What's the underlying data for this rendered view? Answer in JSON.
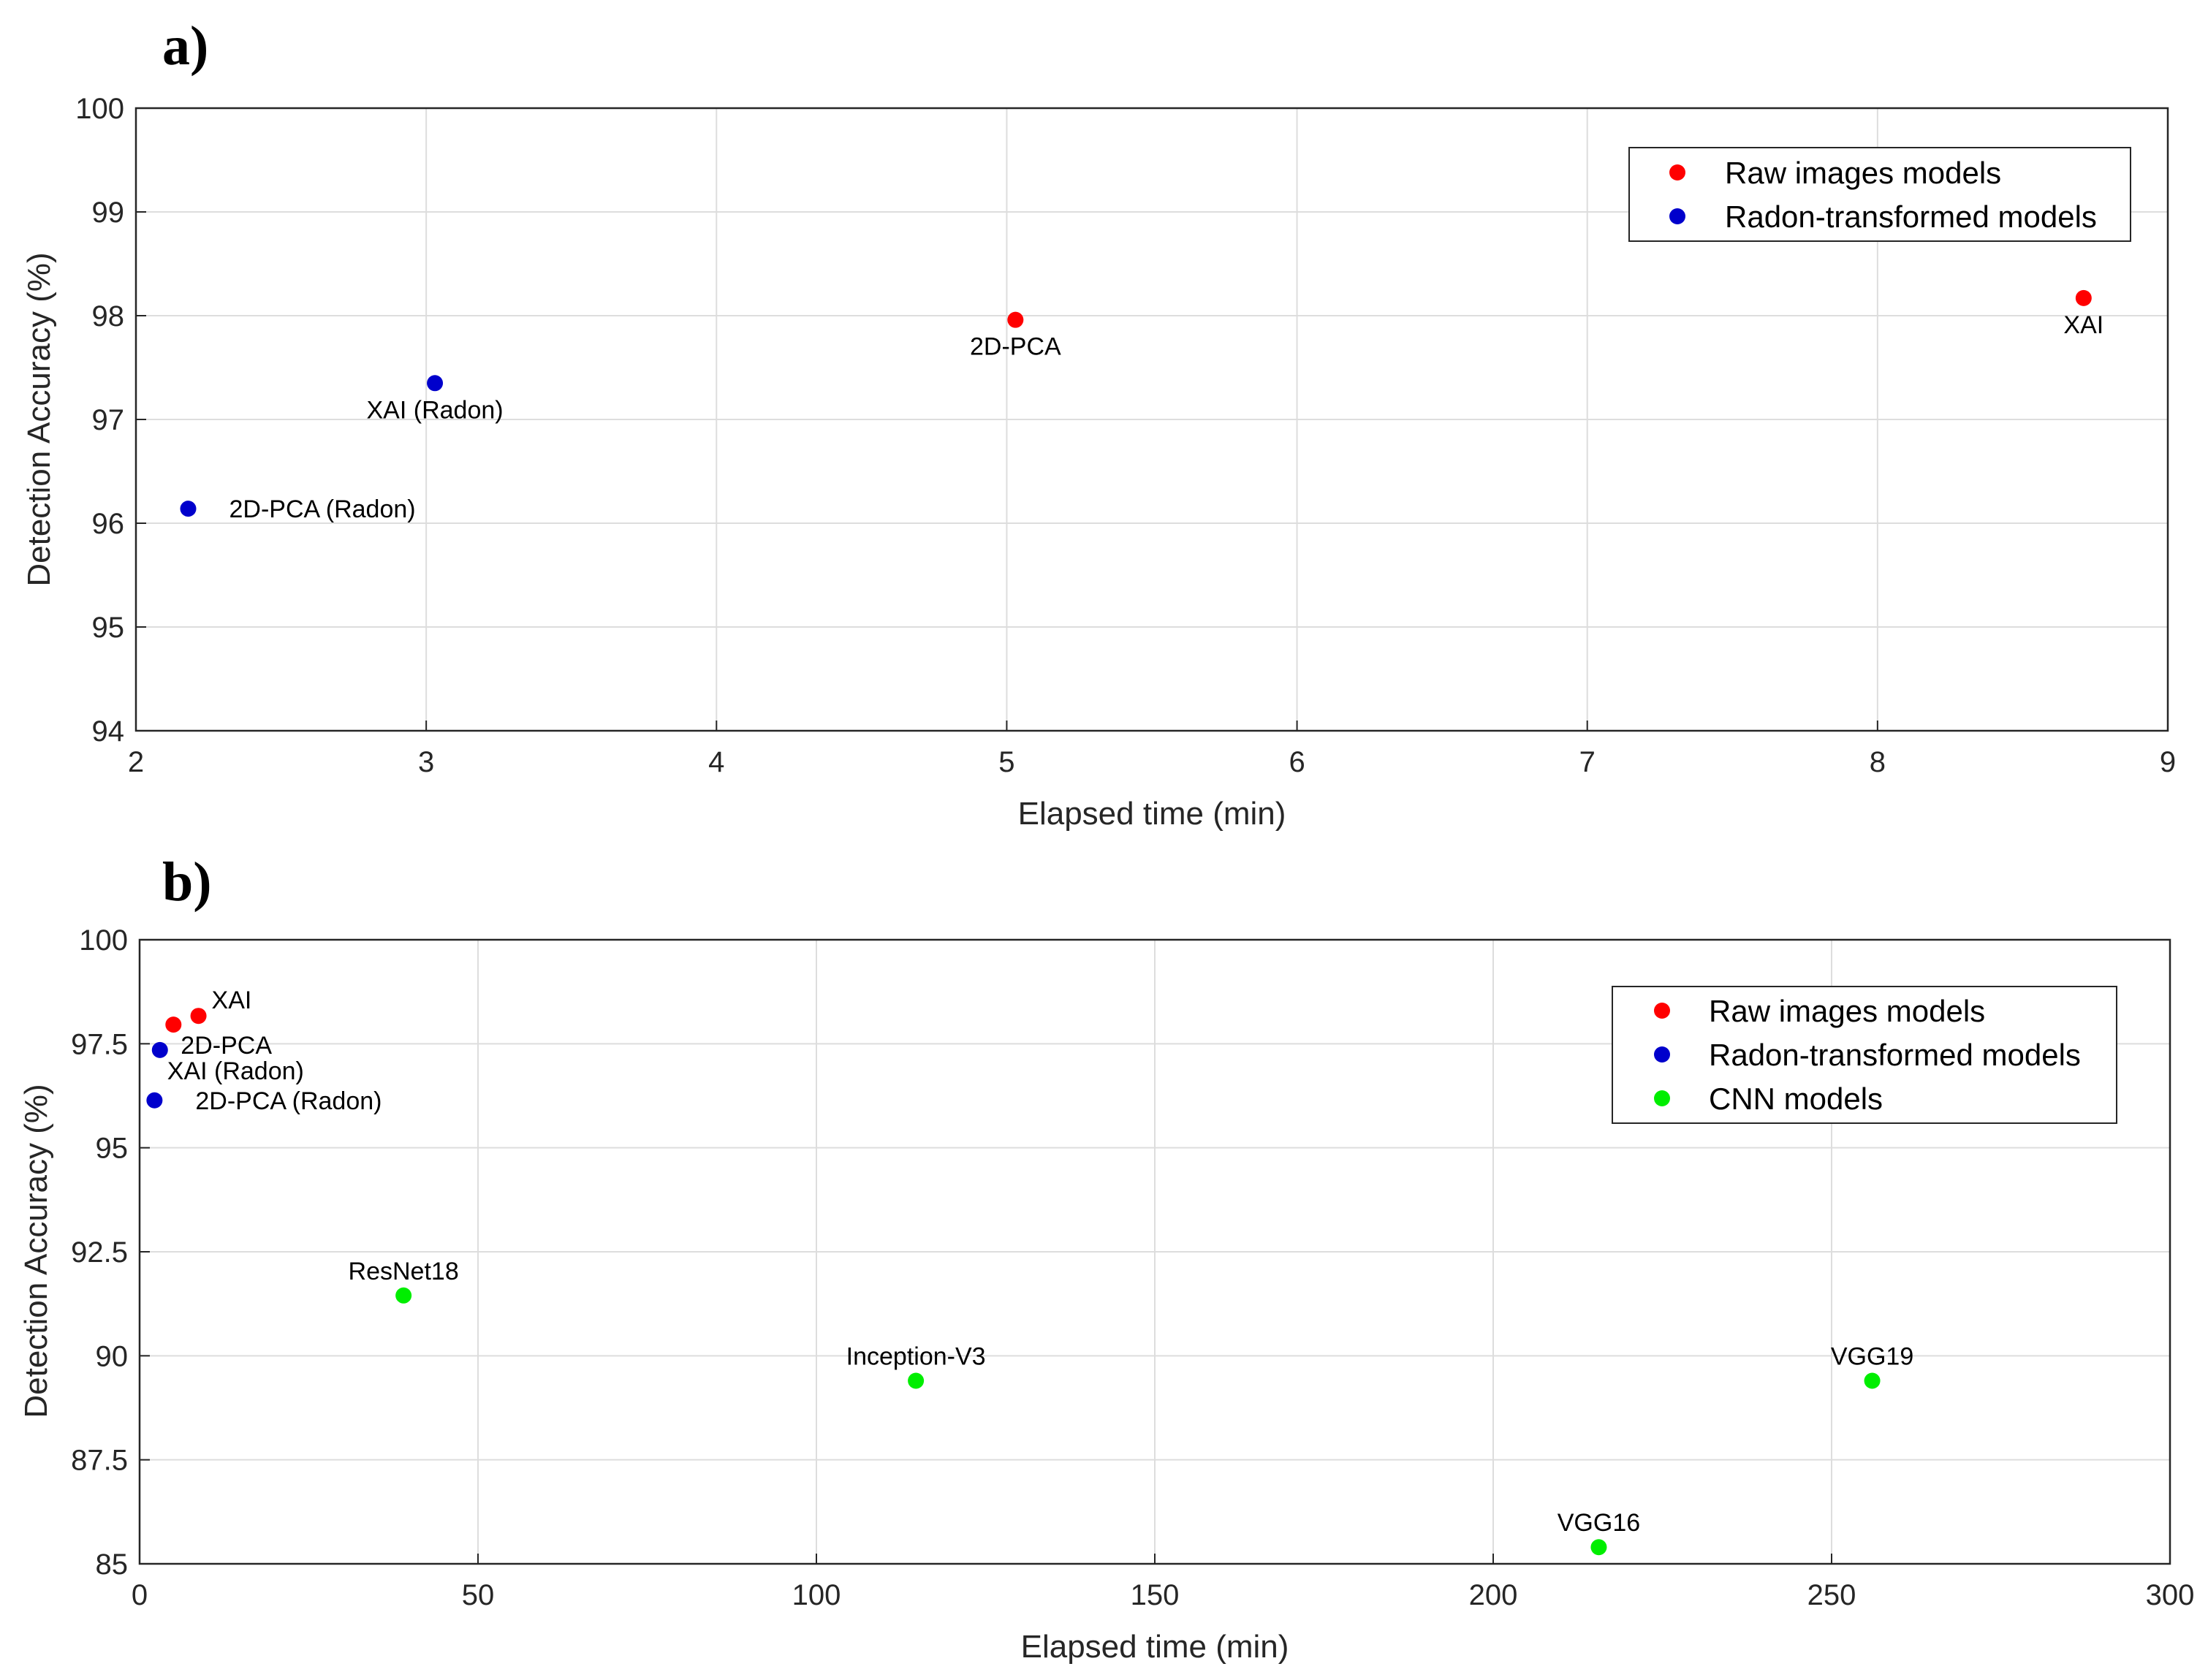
{
  "chart_data": [
    {
      "panel": "a)",
      "type": "scatter",
      "xlabel": "Elapsed time (min)",
      "ylabel": "Detection Accuracy (%)",
      "xlim": [
        2,
        9
      ],
      "ylim": [
        94,
        100
      ],
      "xticks": [
        2,
        3,
        4,
        5,
        6,
        7,
        8,
        9
      ],
      "yticks": [
        94,
        95,
        96,
        97,
        98,
        99,
        100
      ],
      "grid": true,
      "legend_position": "top-right",
      "series": [
        {
          "name": "Raw images models",
          "color": "#ff0000",
          "points": [
            {
              "x": 5.03,
              "y": 97.96,
              "label": "2D-PCA",
              "label_pos": "below"
            },
            {
              "x": 8.71,
              "y": 98.17,
              "label": "XAI",
              "label_pos": "below"
            }
          ]
        },
        {
          "name": "Radon-transformed models",
          "color": "#0000cc",
          "points": [
            {
              "x": 3.03,
              "y": 97.35,
              "label": "XAI (Radon)",
              "label_pos": "below"
            },
            {
              "x": 2.18,
              "y": 96.14,
              "label": "2D-PCA (Radon)",
              "label_pos": "right"
            }
          ]
        }
      ]
    },
    {
      "panel": "b)",
      "type": "scatter",
      "xlabel": "Elapsed time (min)",
      "ylabel": "Detection Accuracy (%)",
      "xlim": [
        0,
        300
      ],
      "ylim": [
        85,
        100
      ],
      "xticks": [
        "0",
        "50",
        "100",
        "150",
        "200",
        "250",
        "300"
      ],
      "yticks": [
        "85",
        "87.5",
        "90",
        "92.5",
        "95",
        "97.5",
        "100"
      ],
      "grid": true,
      "legend_position": "top-right",
      "series": [
        {
          "name": "Raw images models",
          "color": "#ff0000",
          "points": [
            {
              "x": 5.0,
              "y": 97.96,
              "label": "2D-PCA",
              "label_pos": "below-right"
            },
            {
              "x": 8.7,
              "y": 98.17,
              "label": "XAI",
              "label_pos": "above-right"
            }
          ]
        },
        {
          "name": "Radon-transformed models",
          "color": "#0000cc",
          "points": [
            {
              "x": 3.0,
              "y": 97.35,
              "label": "XAI (Radon)",
              "label_pos": "below-right"
            },
            {
              "x": 2.2,
              "y": 96.14,
              "label": "2D-PCA (Radon)",
              "label_pos": "right"
            }
          ]
        },
        {
          "name": "CNN models",
          "color": "#00ee00",
          "points": [
            {
              "x": 39,
              "y": 91.45,
              "label": "ResNet18",
              "label_pos": "above"
            },
            {
              "x": 114.7,
              "y": 89.4,
              "label": "Inception-V3",
              "label_pos": "above"
            },
            {
              "x": 215.6,
              "y": 85.4,
              "label": "VGG16",
              "label_pos": "above"
            },
            {
              "x": 256,
              "y": 89.4,
              "label": "VGG19",
              "label_pos": "above"
            }
          ]
        }
      ]
    }
  ]
}
